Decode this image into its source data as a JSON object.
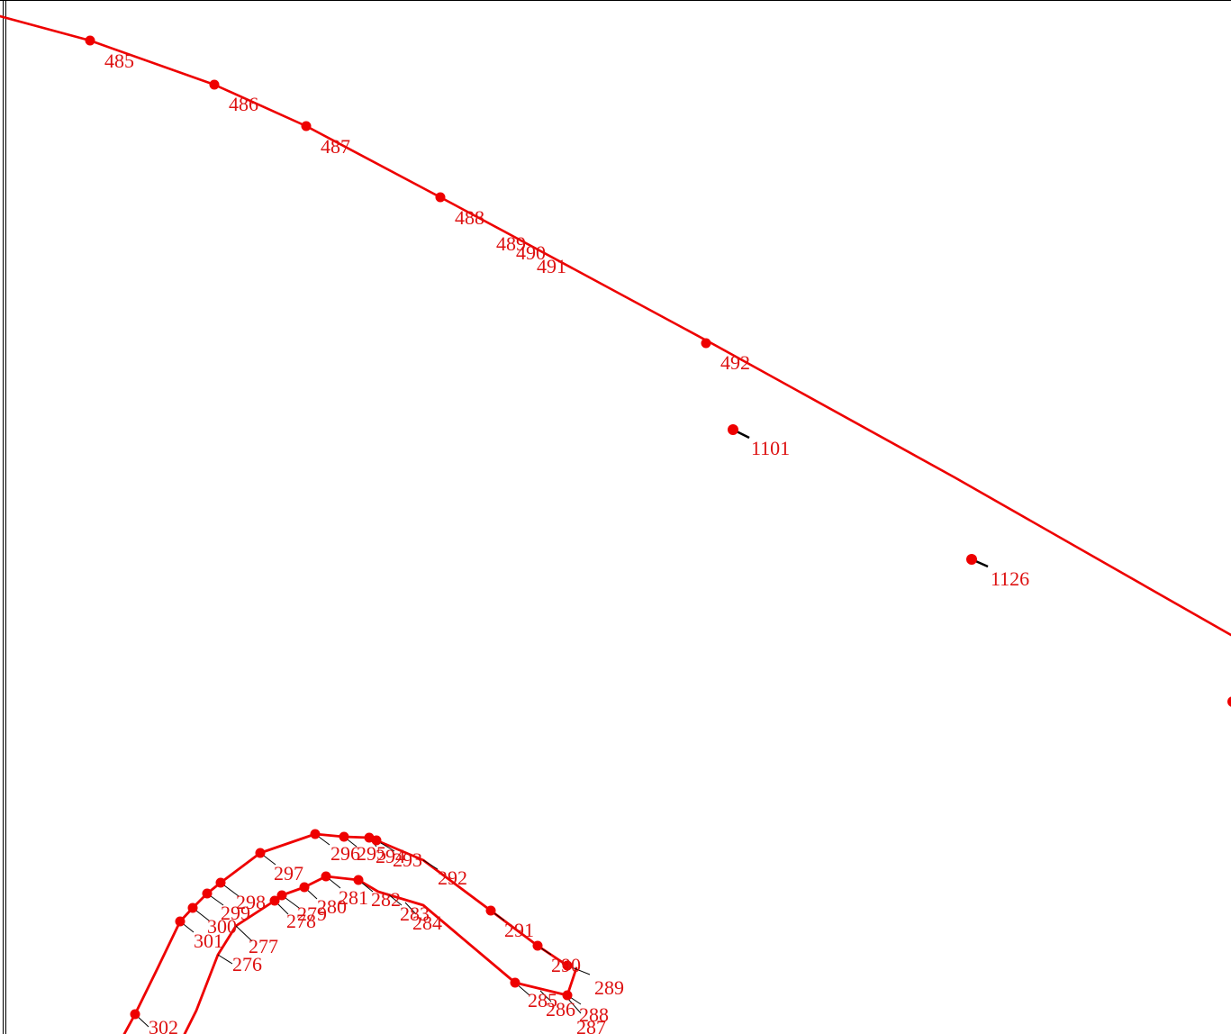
{
  "style": {
    "line_color": "#ee0000",
    "point_color": "#ee0000",
    "label_color": "#dd1111",
    "leader_color": "#000000"
  },
  "top_curve": {
    "points": [
      {
        "label": "485"
      },
      {
        "label": "486"
      },
      {
        "label": "487"
      },
      {
        "label": "488"
      },
      {
        "label": "489"
      },
      {
        "label": "490"
      },
      {
        "label": "491"
      },
      {
        "label": "492"
      }
    ]
  },
  "isolated_points": [
    {
      "label": "1101"
    },
    {
      "label": "1126"
    }
  ],
  "outer_curve": {
    "points": [
      {
        "label": "302"
      },
      {
        "label": "301"
      },
      {
        "label": "300"
      },
      {
        "label": "299"
      },
      {
        "label": "298"
      },
      {
        "label": "297"
      },
      {
        "label": "296"
      },
      {
        "label": "295"
      },
      {
        "label": "294"
      },
      {
        "label": "293"
      },
      {
        "label": "292"
      },
      {
        "label": "291"
      },
      {
        "label": "290"
      },
      {
        "label": "289"
      }
    ]
  },
  "inner_curve": {
    "points": [
      {
        "label": "276"
      },
      {
        "label": "277"
      },
      {
        "label": "278"
      },
      {
        "label": "279"
      },
      {
        "label": "280"
      },
      {
        "label": "281"
      },
      {
        "label": "282"
      },
      {
        "label": "283"
      },
      {
        "label": "284"
      },
      {
        "label": "285"
      },
      {
        "label": "286"
      },
      {
        "label": "287"
      },
      {
        "label": "288"
      }
    ]
  }
}
